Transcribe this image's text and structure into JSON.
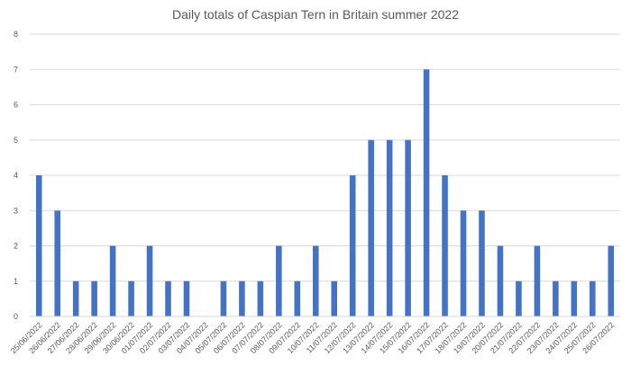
{
  "chart_data": {
    "type": "bar",
    "title": "Daily totals of Caspian Tern in Britain summer 2022",
    "xlabel": "",
    "ylabel": "",
    "ylim": [
      0,
      8
    ],
    "yticks": [
      "0",
      "1",
      "2",
      "3",
      "4",
      "5",
      "6",
      "7",
      "8"
    ],
    "grid": true,
    "legend": "none",
    "bar_color": "#4472c4",
    "grid_color": "#d9d9d9",
    "categories": [
      "25/06/2022",
      "26/06/2022",
      "27/06/2022",
      "28/06/2022",
      "29/06/2022",
      "30/06/2022",
      "01/07/2022",
      "02/07/2022",
      "03/07/2022",
      "04/07/2022",
      "05/07/2022",
      "06/07/2022",
      "07/07/2022",
      "08/07/2022",
      "09/07/2022",
      "10/07/2022",
      "11/07/2022",
      "12/07/2022",
      "13/07/2022",
      "14/07/2022",
      "15/07/2022",
      "16/07/2022",
      "17/07/2022",
      "18/07/2022",
      "19/07/2022",
      "20/07/2022",
      "21/07/2022",
      "22/07/2022",
      "23/07/2022",
      "24/07/2022",
      "25/07/2022",
      "26/07/2022"
    ],
    "values": [
      4,
      3,
      1,
      1,
      2,
      1,
      2,
      1,
      1,
      0,
      1,
      1,
      1,
      2,
      1,
      2,
      1,
      4,
      5,
      5,
      5,
      7,
      4,
      3,
      3,
      2,
      1,
      2,
      1,
      1,
      1,
      2
    ]
  }
}
